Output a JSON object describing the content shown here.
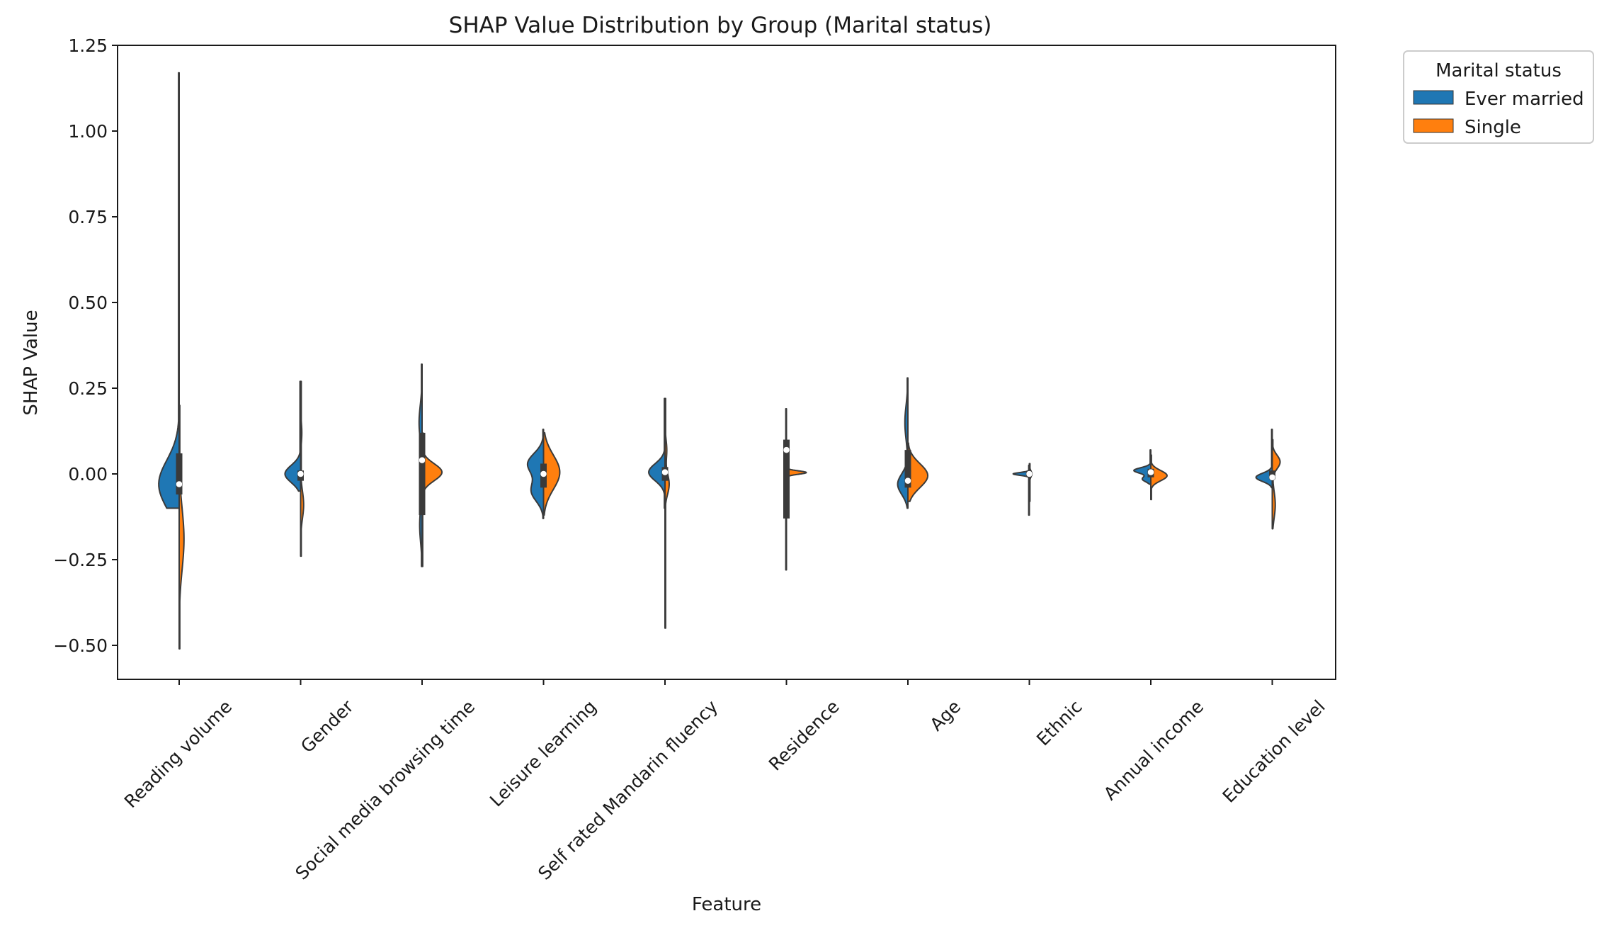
{
  "chart_data": {
    "type": "violin",
    "title": "SHAP Value Distribution by Group (Marital status)",
    "xlabel": "Feature",
    "ylabel": "SHAP Value",
    "ylim": [
      -0.6,
      1.25
    ],
    "yticks": [
      -0.5,
      -0.25,
      0.0,
      0.25,
      0.5,
      0.75,
      1.0,
      1.25
    ],
    "ytick_labels": [
      "−0.50",
      "−0.25",
      "0.00",
      "0.25",
      "0.50",
      "0.75",
      "1.00",
      "1.25"
    ],
    "categories": [
      "Reading volume",
      "Gender",
      "Social media browsing time",
      "Leisure learning",
      "Self rated Mandarin fluency",
      "Residence",
      "Age",
      "Ethnic",
      "Annual income",
      "Education level"
    ],
    "legend": {
      "title": "Marital status",
      "position": "outside-top-right",
      "entries": [
        {
          "label": "Ever married",
          "color": "#1f77b4"
        },
        {
          "label": "Single",
          "color": "#ff7f0e"
        }
      ]
    },
    "series": [
      {
        "name": "Ever married",
        "side": "left",
        "violins": [
          {
            "range": [
              -0.1,
              1.17
            ],
            "peaks": [
              [
                -0.03,
                0.07,
                0.34
              ]
            ]
          },
          {
            "range": [
              -0.05,
              0.27
            ],
            "peaks": [
              [
                0.0,
                0.025,
                0.26
              ]
            ]
          },
          {
            "range": [
              -0.27,
              0.32
            ],
            "peaks": [
              [
                0.15,
                0.05,
                0.05
              ],
              [
                -0.15,
                0.05,
                0.04
              ],
              [
                0.0,
                0.05,
                0.01
              ]
            ]
          },
          {
            "range": [
              -0.13,
              0.13
            ],
            "peaks": [
              [
                0.03,
                0.03,
                0.26
              ],
              [
                -0.05,
                0.03,
                0.2
              ]
            ]
          },
          {
            "range": [
              -0.1,
              0.22
            ],
            "peaks": [
              [
                0.005,
                0.025,
                0.27
              ]
            ]
          },
          {
            "range": [
              -0.28,
              0.19
            ],
            "peaks": [
              [
                0.07,
                0.03,
                0.01
              ],
              [
                -0.1,
                0.08,
                0.01
              ]
            ]
          },
          {
            "range": [
              -0.1,
              0.28
            ],
            "peaks": [
              [
                0.15,
                0.05,
                0.05
              ],
              [
                -0.03,
                0.03,
                0.17
              ]
            ]
          },
          {
            "range": [
              -0.12,
              0.025
            ],
            "peaks": [
              [
                0.0,
                0.004,
                0.27
              ]
            ]
          },
          {
            "range": [
              -0.03,
              0.07
            ],
            "peaks": [
              [
                0.01,
                0.008,
                0.28
              ],
              [
                -0.015,
                0.008,
                0.14
              ]
            ]
          },
          {
            "range": [
              -0.04,
              0.13
            ],
            "peaks": [
              [
                -0.01,
                0.012,
                0.27
              ]
            ]
          }
        ]
      },
      {
        "name": "Single",
        "side": "right",
        "violins": [
          {
            "range": [
              -0.51,
              0.2
            ],
            "peaks": [
              [
                -0.19,
                0.09,
                0.08
              ]
            ]
          },
          {
            "range": [
              -0.24,
              0.27
            ],
            "peaks": [
              [
                -0.09,
                0.04,
                0.05
              ],
              [
                0.12,
                0.03,
                0.02
              ]
            ]
          },
          {
            "range": [
              -0.27,
              0.12
            ],
            "peaks": [
              [
                0.005,
                0.025,
                0.33
              ]
            ]
          },
          {
            "range": [
              -0.12,
              0.12
            ],
            "peaks": [
              [
                0.005,
                0.05,
                0.27
              ]
            ]
          },
          {
            "range": [
              -0.45,
              0.22
            ],
            "peaks": [
              [
                -0.03,
                0.03,
                0.07
              ],
              [
                0.07,
                0.03,
                0.03
              ]
            ]
          },
          {
            "range": [
              -0.01,
              0.02
            ],
            "peaks": [
              [
                0.004,
                0.005,
                0.33
              ]
            ]
          },
          {
            "range": [
              -0.08,
              0.09
            ],
            "peaks": [
              [
                -0.005,
                0.035,
                0.33
              ]
            ]
          },
          {
            "range": [
              -0.08,
              0.03
            ],
            "peaks": [
              [
                0.0,
                0.01,
                0.04
              ]
            ]
          },
          {
            "range": [
              -0.075,
              0.055
            ],
            "peaks": [
              [
                -0.005,
                0.015,
                0.27
              ]
            ]
          },
          {
            "range": [
              -0.16,
              0.1
            ],
            "peaks": [
              [
                0.035,
                0.02,
                0.13
              ],
              [
                -0.09,
                0.04,
                0.05
              ]
            ]
          }
        ]
      }
    ],
    "box": [
      {
        "q1": -0.06,
        "q3": 0.06,
        "median": -0.03
      },
      {
        "q1": -0.02,
        "q3": 0.01,
        "median": 0.0
      },
      {
        "q1": -0.12,
        "q3": 0.12,
        "median": 0.04
      },
      {
        "q1": -0.04,
        "q3": 0.03,
        "median": 0.0
      },
      {
        "q1": -0.02,
        "q3": 0.02,
        "median": 0.005
      },
      {
        "q1": -0.13,
        "q3": 0.1,
        "median": 0.07
      },
      {
        "q1": -0.04,
        "q3": 0.07,
        "median": -0.02
      },
      {
        "q1": -0.005,
        "q3": 0.005,
        "median": 0.0
      },
      {
        "q1": -0.01,
        "q3": 0.015,
        "median": 0.005
      },
      {
        "q1": -0.015,
        "q3": 0.01,
        "median": -0.01
      }
    ]
  }
}
